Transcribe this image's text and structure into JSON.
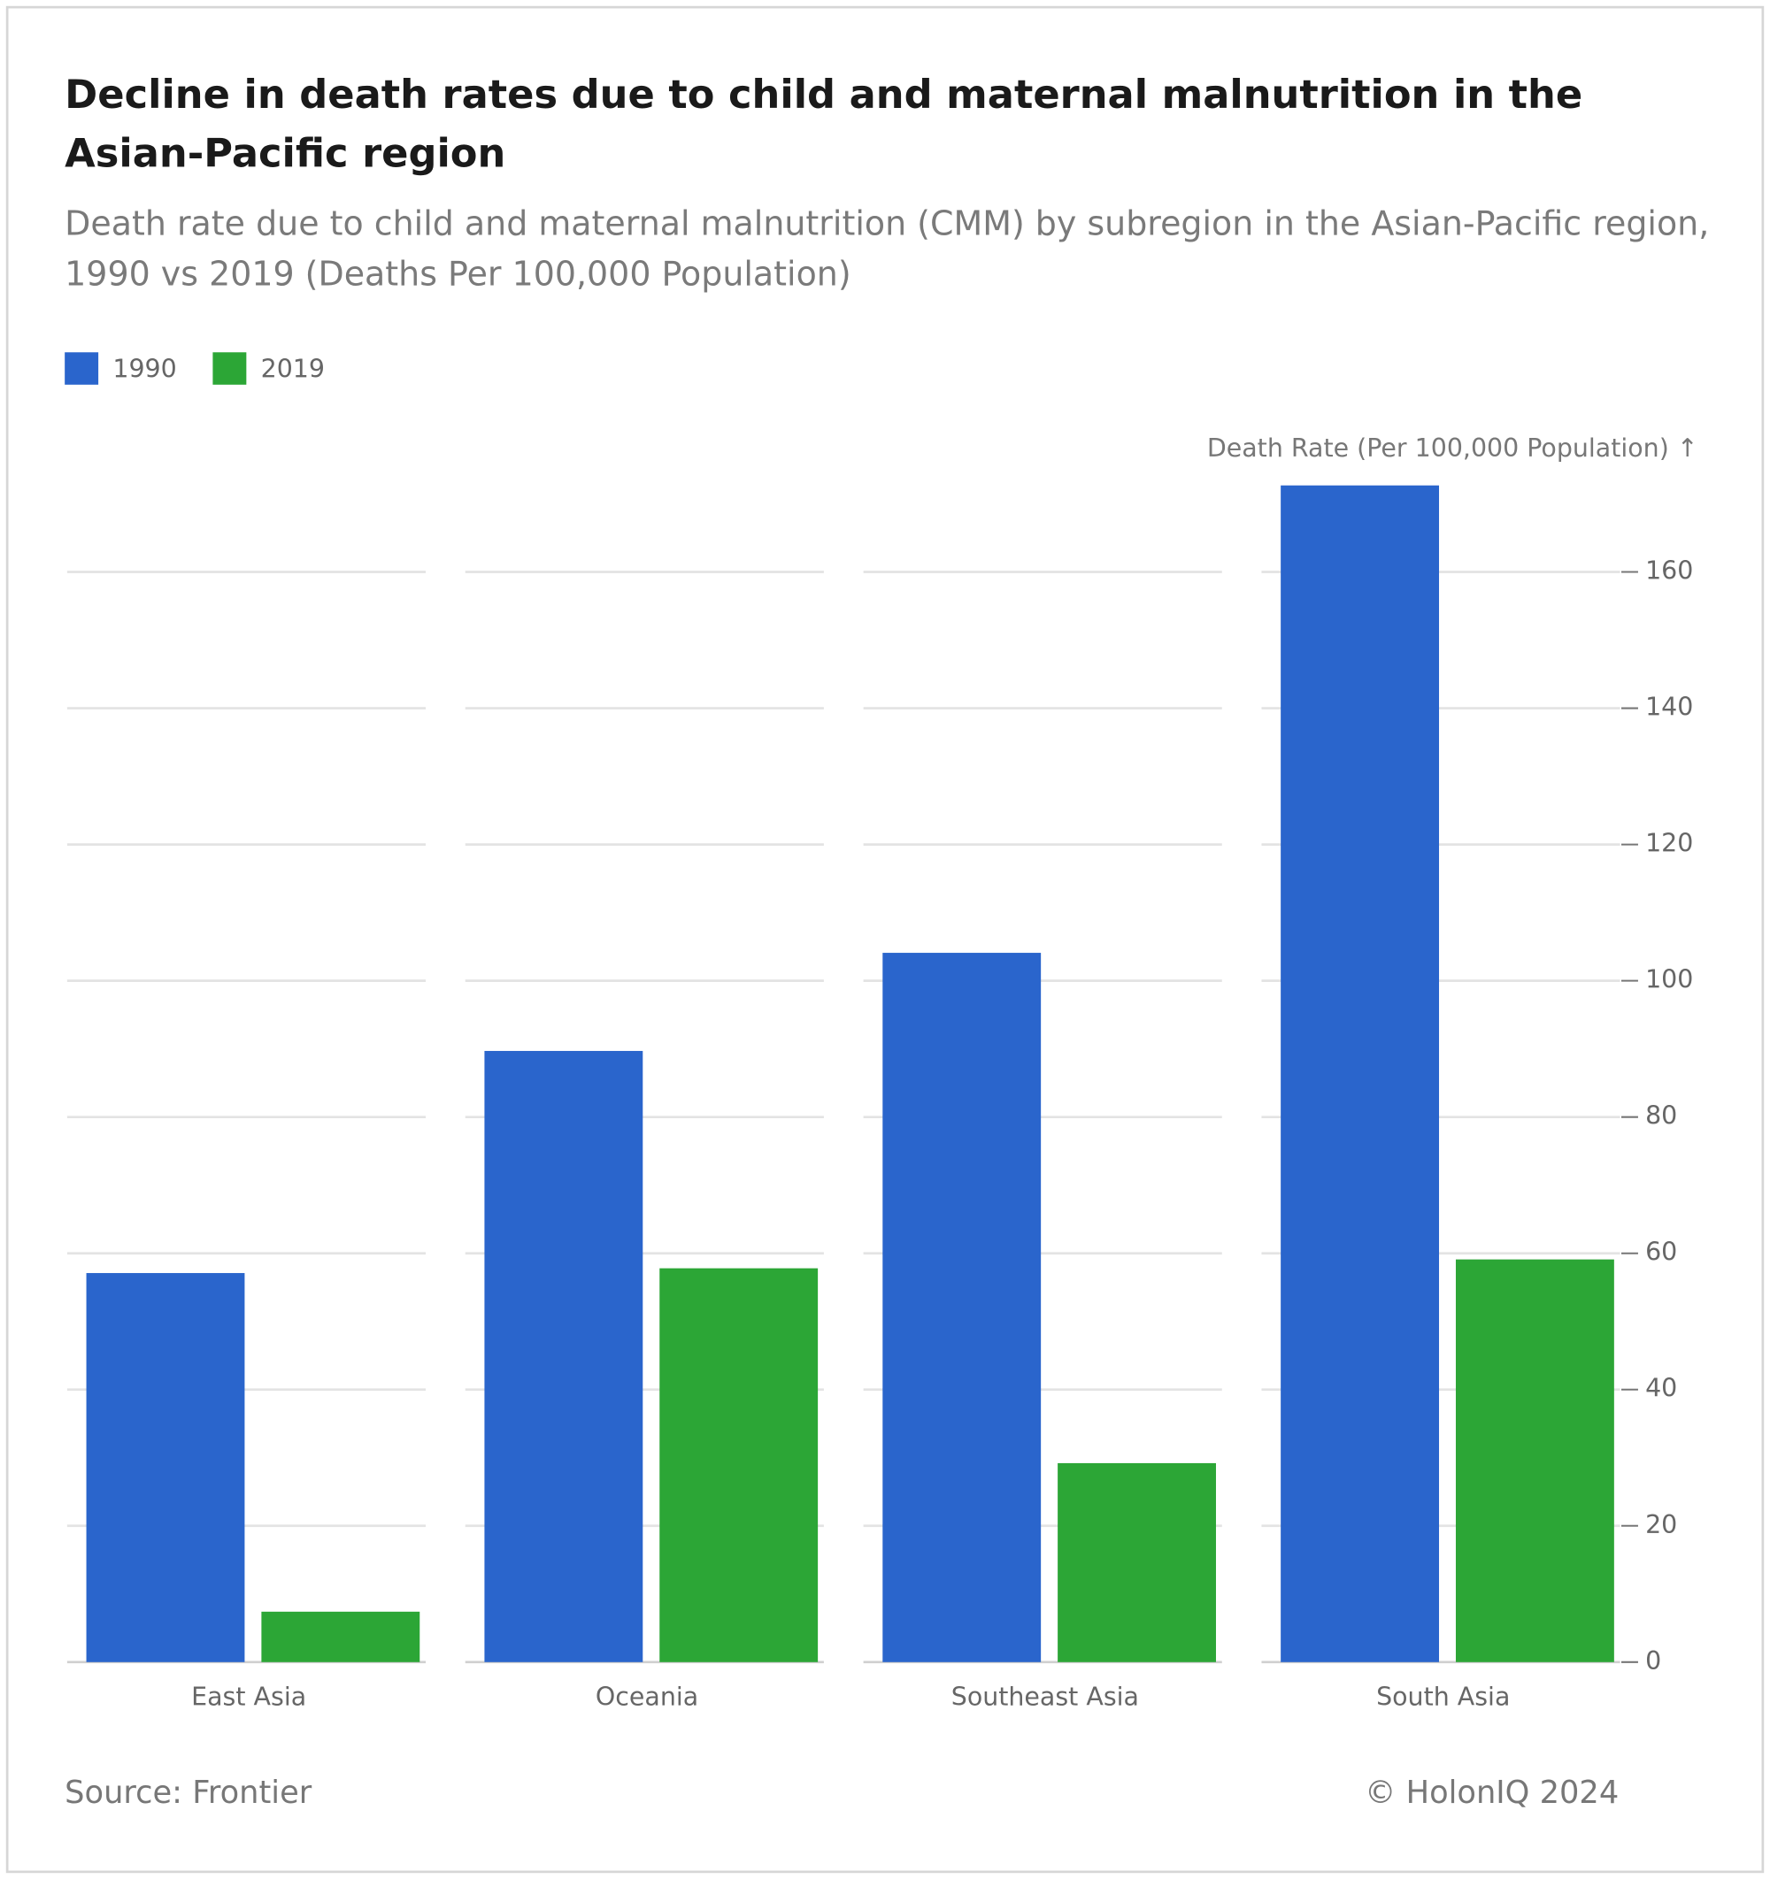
{
  "chart_data": {
    "type": "bar",
    "title": "Decline in death rates due to child and maternal malnutrition in the Asian-Pacific region",
    "subtitle": "Death rate due to child and maternal malnutrition (CMM) by subregion in the Asian-Pacific region, 1990 vs 2019 (Deaths Per 100,000 Population)",
    "y_axis_label": "Death Rate (Per 100,000 Population) ↑",
    "categories": [
      "East Asia",
      "Oceania",
      "Southeast Asia",
      "South Asia"
    ],
    "series": [
      {
        "name": "1990",
        "color": "#2a65cc",
        "values": [
          57.1,
          89.7,
          104.1,
          172.7
        ]
      },
      {
        "name": "2019",
        "color": "#2ca636",
        "values": [
          7.4,
          57.8,
          29.2,
          59.1
        ]
      }
    ],
    "ylim": [
      0,
      175
    ],
    "yticks": [
      0,
      20,
      40,
      60,
      80,
      100,
      120,
      140,
      160
    ],
    "grid": true,
    "source": "Source: Frontier",
    "credit": "© HolonIQ 2024"
  }
}
